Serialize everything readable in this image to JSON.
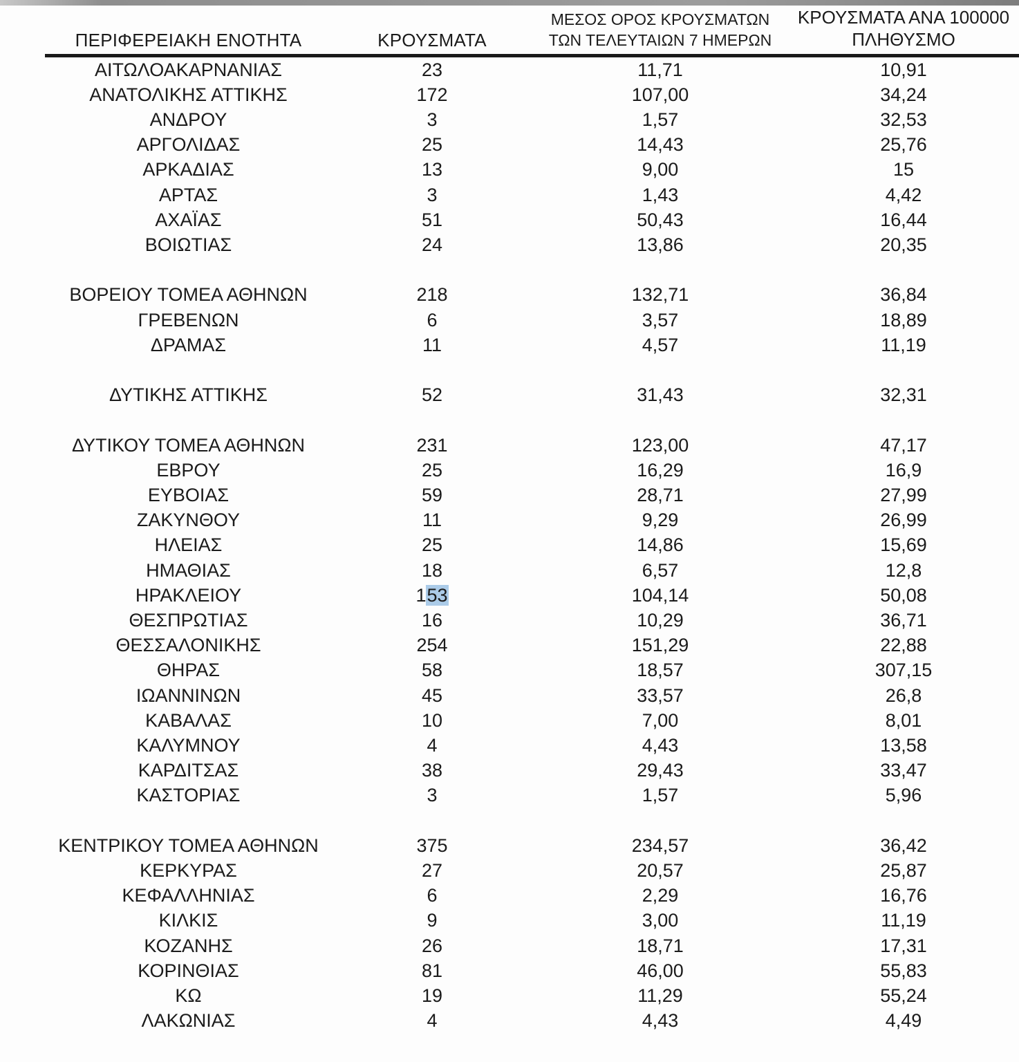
{
  "table": {
    "headers": {
      "region": "ΠΕΡΙΦΕΡΕΙΑΚΗ ΕΝΟΤΗΤΑ",
      "cases": "ΚΡΟΥΣΜΑΤΑ",
      "avg7_line1": "ΜΕΣΟΣ ΟΡΟΣ ΚΡΟΥΣΜΑΤΩΝ",
      "avg7_line2": "ΤΩΝ ΤΕΛΕΥΤΑΙΩΝ 7 ΗΜΕΡΩΝ",
      "per100k_line1": "ΚΡΟΥΣΜΑΤΑ ΑΝΑ 100000",
      "per100k_line2": "ΠΛΗΘΥΣΜΟ"
    },
    "selection_color": "#abcbe8",
    "rows": [
      {
        "region": "ΑΙΤΩΛΟΑΚΑΡΝΑΝΙΑΣ",
        "cases": "23",
        "avg7": "11,71",
        "per100k": "10,91"
      },
      {
        "region": "ΑΝΑΤΟΛΙΚΗΣ ΑΤΤΙΚΗΣ",
        "cases": "172",
        "avg7": "107,00",
        "per100k": "34,24"
      },
      {
        "region": "ΑΝΔΡΟΥ",
        "cases": "3",
        "avg7": "1,57",
        "per100k": "32,53"
      },
      {
        "region": "ΑΡΓΟΛΙΔΑΣ",
        "cases": "25",
        "avg7": "14,43",
        "per100k": "25,76"
      },
      {
        "region": "ΑΡΚΑΔΙΑΣ",
        "cases": "13",
        "avg7": "9,00",
        "per100k": "15"
      },
      {
        "region": "ΑΡΤΑΣ",
        "cases": "3",
        "avg7": "1,43",
        "per100k": "4,42"
      },
      {
        "region": "ΑΧΑΪΑΣ",
        "cases": "51",
        "avg7": "50,43",
        "per100k": "16,44"
      },
      {
        "region": "ΒΟΙΩΤΙΑΣ",
        "cases": "24",
        "avg7": "13,86",
        "per100k": "20,35"
      },
      {
        "blank": true
      },
      {
        "region": "ΒΟΡΕΙΟΥ ΤΟΜΕΑ ΑΘΗΝΩΝ",
        "cases": "218",
        "avg7": "132,71",
        "per100k": "36,84"
      },
      {
        "region": "ΓΡΕΒΕΝΩΝ",
        "cases": "6",
        "avg7": "3,57",
        "per100k": "18,89"
      },
      {
        "region": "ΔΡΑΜΑΣ",
        "cases": "11",
        "avg7": "4,57",
        "per100k": "11,19"
      },
      {
        "blank": true
      },
      {
        "region": "ΔΥΤΙΚΗΣ ΑΤΤΙΚΗΣ",
        "cases": "52",
        "avg7": "31,43",
        "per100k": "32,31"
      },
      {
        "blank": true
      },
      {
        "region": "ΔΥΤΙΚΟΥ ΤΟΜΕΑ ΑΘΗΝΩΝ",
        "cases": "231",
        "avg7": "123,00",
        "per100k": "47,17"
      },
      {
        "region": "ΕΒΡΟΥ",
        "cases": "25",
        "avg7": "16,29",
        "per100k": "16,9"
      },
      {
        "region": "ΕΥΒΟΙΑΣ",
        "cases": "59",
        "avg7": "28,71",
        "per100k": "27,99"
      },
      {
        "region": "ΖΑΚΥΝΘΟΥ",
        "cases": "11",
        "avg7": "9,29",
        "per100k": "26,99"
      },
      {
        "region": "ΗΛΕΙΑΣ",
        "cases": "25",
        "avg7": "14,86",
        "per100k": "15,69"
      },
      {
        "region": "ΗΜΑΘΙΑΣ",
        "cases": "18",
        "avg7": "6,57",
        "per100k": "12,8"
      },
      {
        "region": "ΗΡΑΚΛΕΙΟΥ",
        "cases": "153",
        "cases_parts": {
          "normal": "1",
          "selected": "53"
        },
        "avg7": "104,14",
        "per100k": "50,08"
      },
      {
        "region": "ΘΕΣΠΡΩΤΙΑΣ",
        "cases": "16",
        "avg7": "10,29",
        "per100k": "36,71"
      },
      {
        "region": "ΘΕΣΣΑΛΟΝΙΚΗΣ",
        "cases": "254",
        "avg7": "151,29",
        "per100k": "22,88"
      },
      {
        "region": "ΘΗΡΑΣ",
        "cases": "58",
        "avg7": "18,57",
        "per100k": "307,15"
      },
      {
        "region": "ΙΩΑΝΝΙΝΩΝ",
        "cases": "45",
        "avg7": "33,57",
        "per100k": "26,8"
      },
      {
        "region": "ΚΑΒΑΛΑΣ",
        "cases": "10",
        "avg7": "7,00",
        "per100k": "8,01"
      },
      {
        "region": "ΚΑΛΥΜΝΟΥ",
        "cases": "4",
        "avg7": "4,43",
        "per100k": "13,58"
      },
      {
        "region": "ΚΑΡΔΙΤΣΑΣ",
        "cases": "38",
        "avg7": "29,43",
        "per100k": "33,47"
      },
      {
        "region": "ΚΑΣΤΟΡΙΑΣ",
        "cases": "3",
        "avg7": "1,57",
        "per100k": "5,96"
      },
      {
        "blank": true
      },
      {
        "region": "ΚΕΝΤΡΙΚΟΥ ΤΟΜΕΑ ΑΘΗΝΩΝ",
        "cases": "375",
        "avg7": "234,57",
        "per100k": "36,42"
      },
      {
        "region": "ΚΕΡΚΥΡΑΣ",
        "cases": "27",
        "avg7": "20,57",
        "per100k": "25,87"
      },
      {
        "region": "ΚΕΦΑΛΛΗΝΙΑΣ",
        "cases": "6",
        "avg7": "2,29",
        "per100k": "16,76"
      },
      {
        "region": "ΚΙΛΚΙΣ",
        "cases": "9",
        "avg7": "3,00",
        "per100k": "11,19"
      },
      {
        "region": "ΚΟΖΑΝΗΣ",
        "cases": "26",
        "avg7": "18,71",
        "per100k": "17,31"
      },
      {
        "region": "ΚΟΡΙΝΘΙΑΣ",
        "cases": "81",
        "avg7": "46,00",
        "per100k": "55,83"
      },
      {
        "region": "ΚΩ",
        "cases": "19",
        "avg7": "11,29",
        "per100k": "55,24"
      },
      {
        "region": "ΛΑΚΩΝΙΑΣ",
        "cases": "4",
        "avg7": "4,43",
        "per100k": "4,49"
      }
    ]
  }
}
